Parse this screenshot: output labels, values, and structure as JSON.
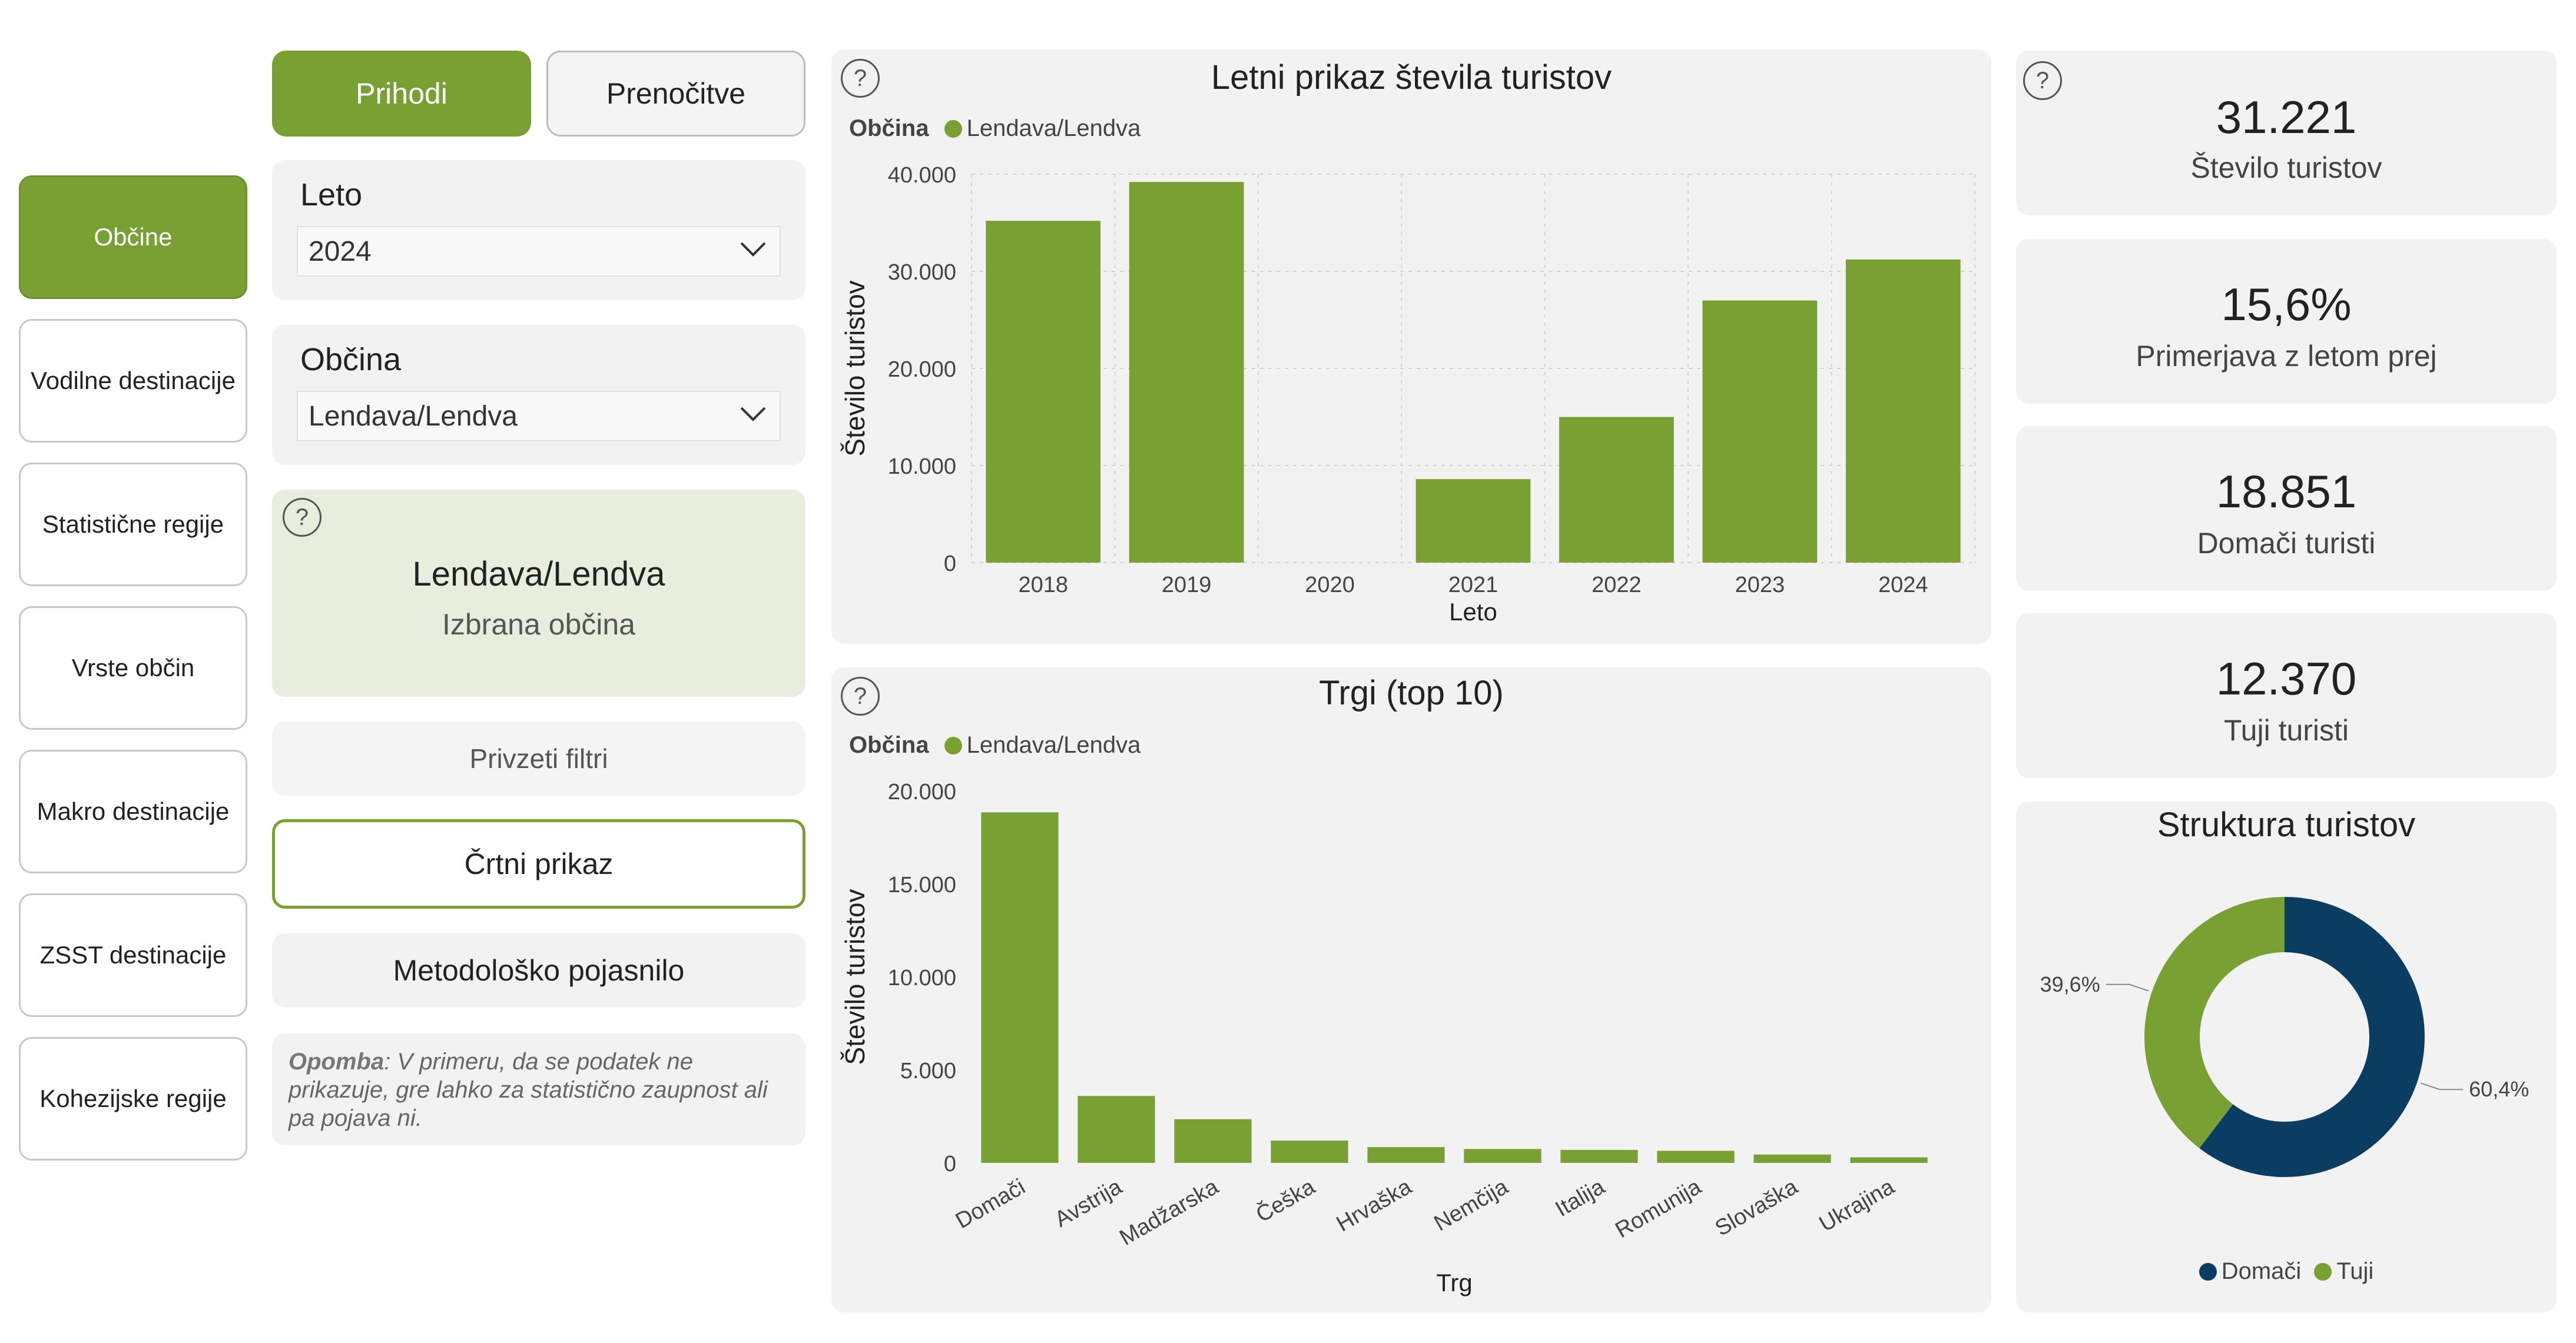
{
  "nav": {
    "items": [
      {
        "label": "Občine",
        "active": true
      },
      {
        "label": "Vodilne destinacije",
        "active": false
      },
      {
        "label": "Statistične regije",
        "active": false
      },
      {
        "label": "Vrste občin",
        "active": false
      },
      {
        "label": "Makro destinacije",
        "active": false
      },
      {
        "label": "ZSST destinacije",
        "active": false
      },
      {
        "label": "Kohezijske regije",
        "active": false
      }
    ]
  },
  "toggle": {
    "prihodi": "Prihodi",
    "prenocitve": "Prenočitve"
  },
  "filters": {
    "year_label": "Leto",
    "year_value": "2024",
    "municipality_label": "Občina",
    "municipality_value": "Lendava/Lendva"
  },
  "selection": {
    "name": "Lendava/Lendva",
    "caption": "Izbrana občina",
    "help": "?"
  },
  "actions": {
    "reset": "Privzeti filtri",
    "line_view": "Črtni prikaz",
    "methodology": "Metodološko pojasnilo"
  },
  "note": {
    "bold": "Opomba",
    "text": ": V primeru, da se podatek ne prikazuje, gre lahko za statistično zaupnost ali pa pojava ni."
  },
  "colors": {
    "accent": "#78a033",
    "dark": "#0b3d63",
    "card": "#f2f2f2",
    "selection_bg": "#e7eedd"
  },
  "kpis": [
    {
      "value": "31.221",
      "label": "Število turistov"
    },
    {
      "value": "15,6%",
      "label": "Primerjava z letom prej"
    },
    {
      "value": "18.851",
      "label": "Domači turisti"
    },
    {
      "value": "12.370",
      "label": "Tuji turisti"
    }
  ],
  "chart_data": [
    {
      "type": "bar",
      "title": "Letni prikaz števila turistov",
      "legend_title": "Občina",
      "legend_item": "Lendava/Lendva",
      "xlabel": "Leto",
      "ylabel": "Število turistov",
      "categories": [
        "2018",
        "2019",
        "2020",
        "2021",
        "2022",
        "2023",
        "2024"
      ],
      "values": [
        35200,
        39200,
        0,
        8600,
        15000,
        27000,
        31221
      ],
      "ylim": [
        0,
        40000
      ],
      "yticks": [
        0,
        10000,
        20000,
        30000,
        40000
      ],
      "ytick_labels": [
        "0",
        "10.000",
        "20.000",
        "30.000",
        "40.000"
      ],
      "grid": true,
      "color": "#78a033"
    },
    {
      "type": "bar",
      "title": "Trgi (top 10)",
      "legend_title": "Občina",
      "legend_item": "Lendava/Lendva",
      "xlabel": "Trg",
      "ylabel": "Število turistov",
      "categories": [
        "Domači",
        "Avstrija",
        "Madžarska",
        "Češka",
        "Hrvaška",
        "Nemčija",
        "Italija",
        "Romunija",
        "Slovaška",
        "Ukrajina"
      ],
      "values": [
        18851,
        3600,
        2350,
        1200,
        850,
        750,
        700,
        650,
        450,
        300
      ],
      "ylim": [
        0,
        20000
      ],
      "yticks": [
        0,
        5000,
        10000,
        15000,
        20000
      ],
      "ytick_labels": [
        "0",
        "5.000",
        "10.000",
        "15.000",
        "20.000"
      ],
      "grid": false,
      "color": "#78a033"
    },
    {
      "type": "pie",
      "title": "Struktura turistov",
      "donut": true,
      "slices": [
        {
          "name": "Domači",
          "value": 60.4,
          "label": "60,4%",
          "color": "#0b3d63"
        },
        {
          "name": "Tuji",
          "value": 39.6,
          "label": "39,6%",
          "color": "#78a033"
        }
      ]
    }
  ]
}
